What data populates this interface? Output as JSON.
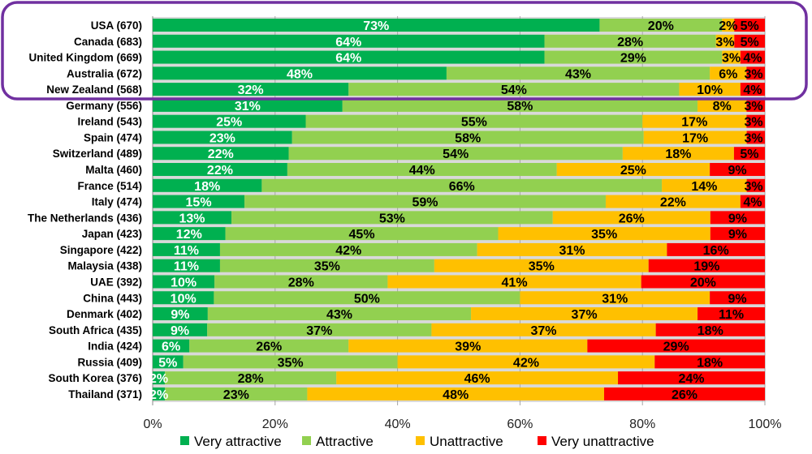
{
  "chart_data": {
    "type": "bar",
    "orientation": "horizontal",
    "stacked": true,
    "categories": [
      "USA (670)",
      "Canada (683)",
      "United Kingdom (669)",
      "Australia (672)",
      "New Zealand (568)",
      "Germany (556)",
      "Ireland (543)",
      "Spain (474)",
      "Switzerland (489)",
      "Malta (460)",
      "France (514)",
      "Italy (474)",
      "The Netherlands (436)",
      "Japan (423)",
      "Singapore (422)",
      "Malaysia (438)",
      "UAE (392)",
      "China (443)",
      "Denmark (402)",
      "South Africa (435)",
      "India (424)",
      "Russia (409)",
      "South Korea (376)",
      "Thailand (371)"
    ],
    "series": [
      {
        "name": "Very attractive",
        "color": "#00b050",
        "label_color": "#ffffff",
        "values": [
          73,
          64,
          64,
          48,
          32,
          31,
          25,
          23,
          22,
          22,
          18,
          15,
          13,
          12,
          11,
          11,
          10,
          10,
          9,
          9,
          6,
          5,
          2,
          2
        ]
      },
      {
        "name": "Attractive",
        "color": "#92d050",
        "label_color": "#000000",
        "values": [
          20,
          28,
          29,
          43,
          54,
          58,
          55,
          58,
          54,
          44,
          66,
          59,
          53,
          45,
          42,
          35,
          28,
          50,
          43,
          37,
          26,
          35,
          28,
          23
        ]
      },
      {
        "name": "Unattractive",
        "color": "#ffc000",
        "label_color": "#000000",
        "values": [
          2,
          3,
          3,
          6,
          10,
          8,
          17,
          17,
          18,
          25,
          14,
          22,
          26,
          35,
          31,
          35,
          41,
          31,
          37,
          37,
          39,
          42,
          46,
          48
        ]
      },
      {
        "name": "Very unattractive",
        "color": "#ff0000",
        "label_color": "#000000",
        "values": [
          5,
          5,
          4,
          3,
          4,
          3,
          3,
          3,
          5,
          9,
          3,
          4,
          9,
          9,
          16,
          19,
          20,
          9,
          11,
          18,
          29,
          18,
          24,
          26
        ]
      }
    ],
    "xticks": [
      "0%",
      "20%",
      "40%",
      "60%",
      "80%",
      "100%"
    ],
    "xlim": [
      0,
      100
    ],
    "grid": true,
    "legend_position": "bottom",
    "highlight": {
      "categories": [
        "USA (670)",
        "Canada (683)",
        "United Kingdom (669)",
        "Australia (672)",
        "New Zealand (568)"
      ],
      "color": "#7030a0"
    }
  }
}
